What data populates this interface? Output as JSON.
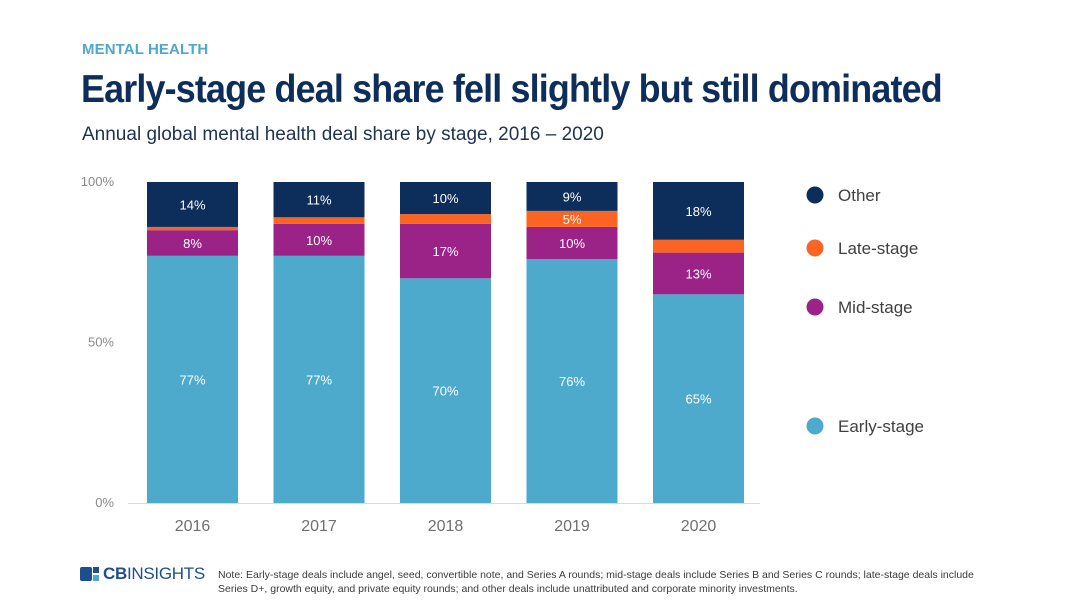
{
  "header": {
    "kicker": "MENTAL HEALTH",
    "title": "Early-stage deal share fell slightly but still dominated",
    "subtitle": "Annual global mental health deal share by stage, 2016 – 2020"
  },
  "chart_data": {
    "type": "bar",
    "stacked": true,
    "title": "Early-stage deal share fell slightly but still dominated",
    "subtitle": "Annual global mental health deal share by stage, 2016 – 2020",
    "xlabel": "",
    "ylabel": "",
    "ylim": [
      0,
      100
    ],
    "yticks": [
      "0%",
      "50%",
      "100%"
    ],
    "categories": [
      "2016",
      "2017",
      "2018",
      "2019",
      "2020"
    ],
    "series": [
      {
        "name": "Early-stage",
        "color": "#4eaacd",
        "values": [
          77,
          77,
          70,
          76,
          65
        ],
        "labels": [
          "77%",
          "77%",
          "70%",
          "76%",
          "65%"
        ]
      },
      {
        "name": "Mid-stage",
        "color": "#9b2388",
        "values": [
          8,
          10,
          17,
          10,
          13
        ],
        "labels": [
          "8%",
          "10%",
          "17%",
          "10%",
          "13%"
        ]
      },
      {
        "name": "Late-stage",
        "color": "#fb6422",
        "values": [
          1,
          2,
          3,
          5,
          4
        ],
        "labels": [
          "",
          "",
          "",
          "5%",
          ""
        ]
      },
      {
        "name": "Other",
        "color": "#0d2d5a",
        "values": [
          14,
          11,
          10,
          9,
          18
        ],
        "labels": [
          "14%",
          "11%",
          "10%",
          "9%",
          "18%"
        ]
      }
    ],
    "legend": {
      "placement": "right",
      "order": [
        "Other",
        "Late-stage",
        "Mid-stage",
        "Early-stage"
      ]
    },
    "grid": false
  },
  "footer": {
    "logo_bold": "CB",
    "logo_rest": "INSIGHTS",
    "note": "Note: Early-stage deals include angel, seed, convertible note, and Series A rounds; mid-stage deals include Series B and Series C rounds; late-stage deals include Series D+, growth equity, and private equity rounds; and other deals include unattributed and corporate minority investments."
  }
}
